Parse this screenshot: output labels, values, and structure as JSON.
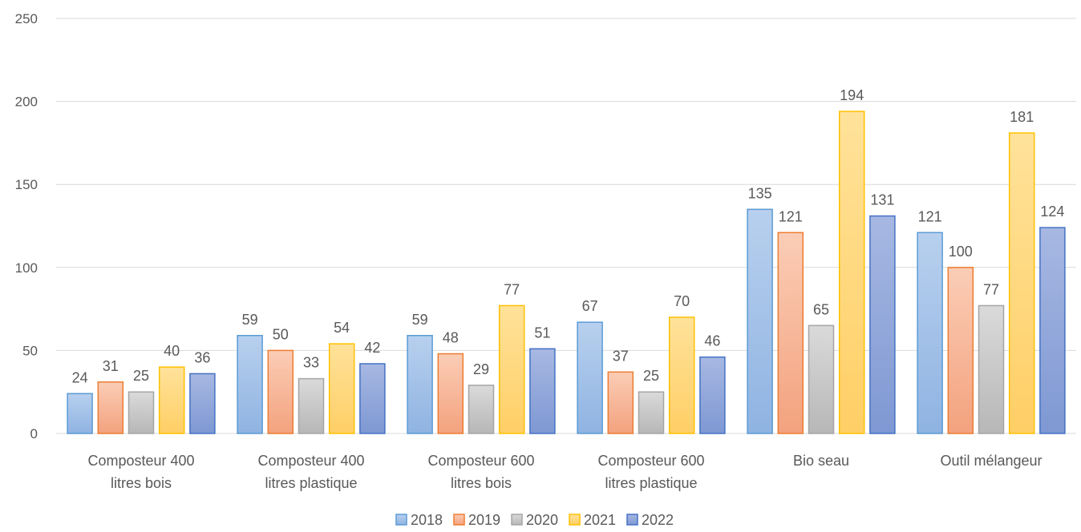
{
  "chart_data": {
    "type": "bar",
    "title": "",
    "xlabel": "",
    "ylabel": "",
    "ylim": [
      0,
      250
    ],
    "yticks": [
      0,
      50,
      100,
      150,
      200,
      250
    ],
    "grid": true,
    "legend_position": "bottom",
    "categories": [
      [
        "Composteur 400",
        "litres bois"
      ],
      [
        "Composteur 400",
        "litres plastique"
      ],
      [
        "Composteur 600",
        "litres bois"
      ],
      [
        "Composteur 600",
        "litres plastique"
      ],
      [
        "Bio seau"
      ],
      [
        "Outil mélangeur"
      ]
    ],
    "series": [
      {
        "name": "2018",
        "values": [
          24,
          59,
          59,
          67,
          135,
          121
        ],
        "colors": {
          "top": "#b8d0ee",
          "bottom": "#8fb3e2",
          "stroke": "#5b9bd5"
        }
      },
      {
        "name": "2019",
        "values": [
          31,
          50,
          48,
          37,
          121,
          100
        ],
        "colors": {
          "top": "#fbcdb6",
          "bottom": "#f3a27e",
          "stroke": "#ed7d31"
        }
      },
      {
        "name": "2020",
        "values": [
          25,
          33,
          29,
          25,
          65,
          77
        ],
        "colors": {
          "top": "#dadada",
          "bottom": "#b7b7b7",
          "stroke": "#a5a5a5"
        }
      },
      {
        "name": "2021",
        "values": [
          40,
          54,
          77,
          70,
          194,
          181
        ],
        "colors": {
          "top": "#ffe29a",
          "bottom": "#ffcf66",
          "stroke": "#ffc000"
        }
      },
      {
        "name": "2022",
        "values": [
          36,
          42,
          51,
          46,
          131,
          124
        ],
        "colors": {
          "top": "#a7b8e2",
          "bottom": "#7f98d3",
          "stroke": "#4472c4"
        }
      }
    ]
  }
}
